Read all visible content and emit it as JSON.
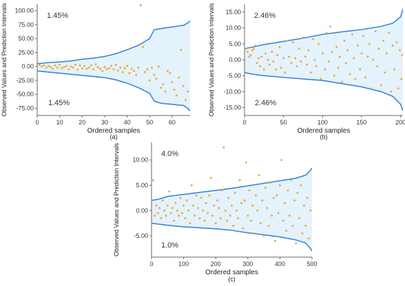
{
  "chart_data": [
    {
      "type": "scatter",
      "panel_label": "(a)",
      "xlabel": "Ordered samples",
      "ylabel": "Observed Values and Prediction Intervals",
      "xlim": [
        0,
        68
      ],
      "ylim": [
        -88,
        112
      ],
      "x_ticks": [
        0,
        10,
        20,
        30,
        40,
        50,
        60
      ],
      "y_ticks": [
        -75,
        -50,
        -25,
        0,
        25,
        50,
        75,
        100
      ],
      "y_tick_labels": [
        "-75.00",
        "-50.00",
        "-25.00",
        "0.00",
        "25.00",
        "50.00",
        "75.00",
        "100.00"
      ],
      "annotation_top": "1.45%",
      "annotation_bottom": "1.45%",
      "band": {
        "x": [
          0,
          5,
          10,
          15,
          20,
          25,
          30,
          35,
          40,
          45,
          50,
          52,
          55,
          60,
          65,
          67,
          68
        ],
        "upper": [
          5,
          7,
          8,
          10,
          13,
          15,
          18,
          23,
          30,
          38,
          50,
          66,
          68,
          71,
          74,
          78,
          82
        ],
        "lower": [
          -8,
          -10,
          -12,
          -14,
          -16,
          -18,
          -20,
          -24,
          -30,
          -38,
          -48,
          -62,
          -66,
          -68,
          -70,
          -75,
          -80
        ]
      },
      "points": [
        [
          1,
          3
        ],
        [
          2,
          0
        ],
        [
          3,
          2
        ],
        [
          4,
          -2
        ],
        [
          5,
          1
        ],
        [
          6,
          -1
        ],
        [
          7,
          -4
        ],
        [
          8,
          2
        ],
        [
          9,
          -2
        ],
        [
          10,
          3
        ],
        [
          11,
          -3
        ],
        [
          12,
          -1
        ],
        [
          13,
          1
        ],
        [
          14,
          -5
        ],
        [
          15,
          0
        ],
        [
          16,
          -2
        ],
        [
          17,
          3
        ],
        [
          18,
          -6
        ],
        [
          19,
          2
        ],
        [
          20,
          -3
        ],
        [
          21,
          1
        ],
        [
          22,
          -4
        ],
        [
          23,
          -2
        ],
        [
          24,
          2
        ],
        [
          25,
          -5
        ],
        [
          26,
          4
        ],
        [
          27,
          -1
        ],
        [
          28,
          -4
        ],
        [
          29,
          -8
        ],
        [
          30,
          -1
        ],
        [
          31,
          -5
        ],
        [
          32,
          -3
        ],
        [
          33,
          1
        ],
        [
          34,
          -5
        ],
        [
          35,
          3
        ],
        [
          36,
          -7
        ],
        [
          37,
          -2
        ],
        [
          38,
          -10
        ],
        [
          39,
          -3
        ],
        [
          40,
          1
        ],
        [
          41,
          -12
        ],
        [
          42,
          -4
        ],
        [
          43,
          -8
        ],
        [
          44,
          -15
        ],
        [
          45,
          -2
        ],
        [
          46,
          110
        ],
        [
          47,
          35
        ],
        [
          48,
          -10
        ],
        [
          49,
          -5
        ],
        [
          50,
          -25
        ],
        [
          51,
          -2
        ],
        [
          52,
          -15
        ],
        [
          53,
          -22
        ],
        [
          54,
          0
        ],
        [
          55,
          -38
        ],
        [
          56,
          -32
        ],
        [
          57,
          -45
        ],
        [
          58,
          -8
        ],
        [
          59,
          -12
        ],
        [
          60,
          -28
        ],
        [
          61,
          -42
        ],
        [
          62,
          -52
        ],
        [
          63,
          -20
        ],
        [
          64,
          30
        ],
        [
          65,
          -35
        ],
        [
          66,
          -60
        ],
        [
          67,
          -45
        ]
      ]
    },
    {
      "type": "scatter",
      "panel_label": "(b)",
      "xlabel": "Ordered samples",
      "ylabel": "Observed Values and Prediction Intervals",
      "xlim": [
        0,
        203
      ],
      "ylim": [
        -17.5,
        17.5
      ],
      "x_ticks": [
        0,
        50,
        100,
        150,
        200
      ],
      "y_ticks": [
        -15,
        -10,
        -5,
        0,
        5,
        10,
        15
      ],
      "y_tick_labels": [
        "-15.00",
        "-10.00",
        "-5.00",
        "0.00",
        "5.00",
        "10.00",
        "15.00"
      ],
      "annotation_top": "2.46%",
      "annotation_bottom": "2.46%",
      "band": {
        "x": [
          0,
          10,
          25,
          50,
          75,
          100,
          125,
          150,
          175,
          190,
          200,
          203
        ],
        "upper": [
          3.5,
          4,
          4.8,
          5.8,
          6.8,
          8,
          8.8,
          9.5,
          10.5,
          11.5,
          13.5,
          16
        ],
        "lower": [
          -4,
          -4.5,
          -5,
          -5.5,
          -6,
          -6.5,
          -7.5,
          -8.5,
          -10,
          -11.5,
          -14,
          -16
        ]
      },
      "points": [
        [
          2,
          3.5
        ],
        [
          4,
          2.5
        ],
        [
          6,
          1
        ],
        [
          8,
          1.5
        ],
        [
          10,
          3
        ],
        [
          12,
          3.5
        ],
        [
          14,
          4.5
        ],
        [
          16,
          -1
        ],
        [
          18,
          0.5
        ],
        [
          20,
          -2
        ],
        [
          22,
          1
        ],
        [
          25,
          -3
        ],
        [
          27,
          2
        ],
        [
          30,
          0
        ],
        [
          32,
          -1.5
        ],
        [
          35,
          2.5
        ],
        [
          37,
          -0.5
        ],
        [
          40,
          -3
        ],
        [
          42,
          1.5
        ],
        [
          45,
          4
        ],
        [
          47,
          -2.5
        ],
        [
          50,
          0.5
        ],
        [
          52,
          -4
        ],
        [
          55,
          6
        ],
        [
          57,
          1
        ],
        [
          60,
          -1
        ],
        [
          62,
          5.5
        ],
        [
          65,
          0.5
        ],
        [
          67,
          -2
        ],
        [
          70,
          3.5
        ],
        [
          72,
          -0.5
        ],
        [
          75,
          7
        ],
        [
          78,
          1
        ],
        [
          80,
          -1.5
        ],
        [
          82,
          3
        ],
        [
          85,
          -4
        ],
        [
          88,
          6.5
        ],
        [
          90,
          0
        ],
        [
          92,
          -2
        ],
        [
          95,
          5
        ],
        [
          98,
          -6
        ],
        [
          100,
          2
        ],
        [
          103,
          -3
        ],
        [
          105,
          8.5
        ],
        [
          108,
          -0.5
        ],
        [
          110,
          10.5
        ],
        [
          112,
          2.5
        ],
        [
          115,
          -5
        ],
        [
          118,
          4
        ],
        [
          120,
          -2.5
        ],
        [
          122,
          1
        ],
        [
          125,
          -7
        ],
        [
          128,
          6
        ],
        [
          130,
          -1
        ],
        [
          132,
          3
        ],
        [
          135,
          -4.5
        ],
        [
          138,
          8
        ],
        [
          140,
          0.5
        ],
        [
          142,
          -6
        ],
        [
          145,
          4.5
        ],
        [
          148,
          -3
        ],
        [
          150,
          2
        ],
        [
          152,
          7.5
        ],
        [
          155,
          -5.5
        ],
        [
          158,
          1
        ],
        [
          160,
          5
        ],
        [
          162,
          -9
        ],
        [
          165,
          0
        ],
        [
          168,
          9
        ],
        [
          170,
          -2
        ],
        [
          172,
          3.5
        ],
        [
          175,
          -8
        ],
        [
          178,
          6
        ],
        [
          180,
          -4
        ],
        [
          182,
          2
        ],
        [
          185,
          8.5
        ],
        [
          188,
          -10
        ],
        [
          190,
          4.5
        ],
        [
          192,
          -3
        ],
        [
          195,
          5.5
        ],
        [
          197,
          -9
        ],
        [
          199,
          3
        ],
        [
          201,
          -6
        ],
        [
          202,
          1.5
        ]
      ]
    },
    {
      "type": "scatter",
      "panel_label": "(c)",
      "xlabel": "Ordered samples",
      "ylabel": "Observed Values and Prediction Intervals",
      "xlim": [
        0,
        500
      ],
      "ylim": [
        -9.2,
        13.5
      ],
      "x_ticks": [
        0,
        100,
        200,
        300,
        400,
        500
      ],
      "y_ticks": [
        -5,
        0,
        5,
        10
      ],
      "y_tick_labels": [
        "-5.00",
        "0.00",
        "5.00",
        "10.00"
      ],
      "annotation_top": "4.0%",
      "annotation_bottom": "1.0%",
      "band": {
        "x": [
          0,
          25,
          50,
          100,
          150,
          200,
          250,
          300,
          350,
          400,
          450,
          480,
          495,
          500
        ],
        "upper": [
          2,
          2.3,
          2.8,
          3.2,
          3.6,
          4,
          4.4,
          4.9,
          5.4,
          5.9,
          6.4,
          7,
          8,
          8.4
        ],
        "lower": [
          -2.5,
          -2.7,
          -2.9,
          -3.2,
          -3.4,
          -3.6,
          -3.9,
          -4.4,
          -4.8,
          -5.2,
          -5.8,
          -6.4,
          -7.5,
          -8
        ]
      },
      "points": [
        [
          5,
          6
        ],
        [
          10,
          -1
        ],
        [
          15,
          1
        ],
        [
          20,
          -0.5
        ],
        [
          25,
          0.5
        ],
        [
          30,
          -1.5
        ],
        [
          35,
          2
        ],
        [
          40,
          0
        ],
        [
          45,
          -1
        ],
        [
          50,
          1
        ],
        [
          55,
          3.8
        ],
        [
          60,
          -0.5
        ],
        [
          65,
          0.5
        ],
        [
          70,
          -2
        ],
        [
          75,
          1.5
        ],
        [
          80,
          0
        ],
        [
          85,
          -1
        ],
        [
          90,
          2.5
        ],
        [
          95,
          -0.5
        ],
        [
          100,
          1
        ],
        [
          105,
          -1.5
        ],
        [
          110,
          2
        ],
        [
          115,
          0
        ],
        [
          120,
          -2.5
        ],
        [
          125,
          5
        ],
        [
          130,
          1
        ],
        [
          135,
          -1
        ],
        [
          140,
          3
        ],
        [
          145,
          0.5
        ],
        [
          150,
          -1.5
        ],
        [
          155,
          2.5
        ],
        [
          160,
          0
        ],
        [
          165,
          -2
        ],
        [
          170,
          1.5
        ],
        [
          175,
          -0.5
        ],
        [
          180,
          3
        ],
        [
          185,
          6.5
        ],
        [
          190,
          -1
        ],
        [
          195,
          1
        ],
        [
          200,
          -2.5
        ],
        [
          205,
          2
        ],
        [
          210,
          0.5
        ],
        [
          215,
          -1.5
        ],
        [
          220,
          4
        ],
        [
          225,
          12.5
        ],
        [
          230,
          0
        ],
        [
          235,
          -2
        ],
        [
          240,
          2.5
        ],
        [
          245,
          -1
        ],
        [
          250,
          1
        ],
        [
          255,
          -3
        ],
        [
          260,
          3.5
        ],
        [
          265,
          0
        ],
        [
          270,
          -1.5
        ],
        [
          275,
          6
        ],
        [
          280,
          1.5
        ],
        [
          285,
          -3.5
        ],
        [
          290,
          2
        ],
        [
          295,
          9.5
        ],
        [
          300,
          -1
        ],
        [
          305,
          4
        ],
        [
          310,
          -2
        ],
        [
          315,
          1
        ],
        [
          320,
          -4.5
        ],
        [
          325,
          3
        ],
        [
          330,
          0
        ],
        [
          335,
          7
        ],
        [
          340,
          -2.5
        ],
        [
          345,
          2
        ],
        [
          350,
          -5
        ],
        [
          355,
          4.5
        ],
        [
          360,
          0.5
        ],
        [
          365,
          -3
        ],
        [
          370,
          5.5
        ],
        [
          375,
          -1
        ],
        [
          380,
          2.5
        ],
        [
          385,
          -6
        ],
        [
          390,
          3
        ],
        [
          395,
          -0.5
        ],
        [
          400,
          5
        ],
        [
          405,
          10
        ],
        [
          410,
          -2
        ],
        [
          415,
          1.5
        ],
        [
          420,
          -4
        ],
        [
          425,
          4
        ],
        [
          430,
          -1
        ],
        [
          435,
          6
        ],
        [
          440,
          -3
        ],
        [
          445,
          2
        ],
        [
          450,
          -6.5
        ],
        [
          455,
          3.5
        ],
        [
          460,
          -1.5
        ],
        [
          465,
          5
        ],
        [
          470,
          -4.5
        ],
        [
          475,
          1
        ],
        [
          480,
          -3
        ],
        [
          485,
          2.5
        ],
        [
          490,
          -5.5
        ],
        [
          495,
          0
        ]
      ]
    }
  ]
}
